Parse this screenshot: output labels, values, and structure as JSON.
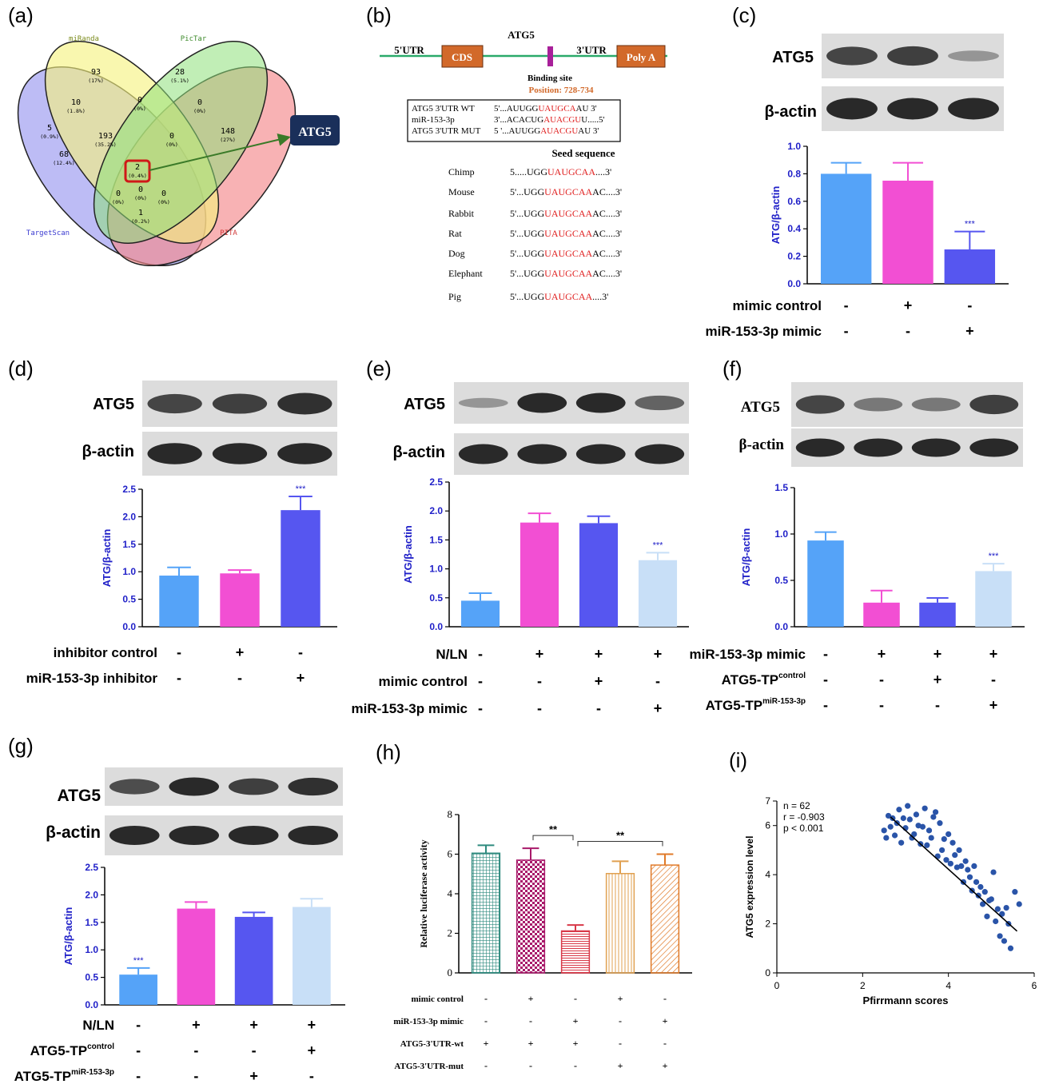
{
  "panel_labels": [
    "(a)",
    "(b)",
    "(c)",
    "(d)",
    "(e)",
    "(f)",
    "(g)",
    "(h)",
    "(i)"
  ],
  "colors": {
    "blue": "#55a3f8",
    "pink": "#f24fd3",
    "indigo": "#5656f0",
    "light_blue": "#c8dff7",
    "axis_blue": "#2020c8",
    "red": "#e02020",
    "orange": "#e07a28",
    "navy": "#1a2f5a"
  },
  "venn": {
    "set_names": [
      "miRanda",
      "PicTar",
      "TargetScan",
      "PITA"
    ],
    "regions": [
      {
        "count": "93",
        "pct": "(17%)"
      },
      {
        "count": "28",
        "pct": "(5.1%)"
      },
      {
        "count": "10",
        "pct": "(1.8%)"
      },
      {
        "count": "0",
        "pct": "(0%)"
      },
      {
        "count": "0",
        "pct": "(0%)"
      },
      {
        "count": "5",
        "pct": "(0.9%)"
      },
      {
        "count": "193",
        "pct": "(35.2%)"
      },
      {
        "count": "0",
        "pct": "(0%)"
      },
      {
        "count": "148",
        "pct": "(27%)"
      },
      {
        "count": "68",
        "pct": "(12.4%)"
      },
      {
        "count": "2",
        "pct": "(0.4%)"
      },
      {
        "count": "0",
        "pct": "(0%)"
      },
      {
        "count": "0",
        "pct": "(0%)"
      },
      {
        "count": "1",
        "pct": "(0.2%)"
      },
      {
        "count": "0",
        "pct": "(0%)"
      }
    ],
    "callout": "ATG5"
  },
  "gene_diagram": {
    "title": "ATG5",
    "utr5": "5'UTR",
    "cds": "CDS",
    "utr3": "3'UTR",
    "polya": "Poly A",
    "binding_site": "Binding site",
    "position": "Position: 728-734",
    "alignment": [
      {
        "name": "ATG5 3'UTR WT",
        "pre": "5'...AUUGG",
        "red": "UAUGCA",
        "post": "AU 3'"
      },
      {
        "name": "miR-153-3p",
        "pre": "3'...ACACUG",
        "red": "AUACGU",
        "post": "U.....5'"
      },
      {
        "name": "ATG5 3'UTR MUT",
        "pre": "5 '...AUUGG",
        "red": "AUACGU",
        "post": "AU 3'"
      }
    ],
    "seed_title": "Seed sequence",
    "species": [
      {
        "name": "Chimp",
        "pre": "5.....UGG",
        "red": "UAUGCAA",
        "post": "....3'"
      },
      {
        "name": "Mouse",
        "pre": "5'...UGG",
        "red": "UAUGCAA",
        "post": "AC....3'"
      },
      {
        "name": "Rabbit",
        "pre": "5'...UGG",
        "red": "UAUGCAA",
        "post": "AC....3'"
      },
      {
        "name": "Rat",
        "pre": "5'...UGG",
        "red": "UAUGCAA",
        "post": "AC....3'"
      },
      {
        "name": "Dog",
        "pre": "5'...UGG",
        "red": "UAUGCAA",
        "post": "AC....3'"
      },
      {
        "name": "Elephant",
        "pre": "5'...UGG",
        "red": "UAUGCAA",
        "post": "AC....3'"
      },
      {
        "name": "Pig",
        "pre": "5'...UGG",
        "red": "UAUGCAA",
        "post": "....3'"
      }
    ]
  },
  "blot_labels": {
    "atg5": "ATG5",
    "actin": "β-actin"
  },
  "chart_data": [
    {
      "panel": "(c)",
      "type": "bar",
      "ylabel": "ATG/β-actin",
      "ylim": [
        0,
        1.0
      ],
      "ticks": [
        "0.0",
        "0.2",
        "0.4",
        "0.6",
        "0.8",
        "1.0"
      ],
      "values": [
        0.8,
        0.75,
        0.25
      ],
      "errors": [
        0.08,
        0.13,
        0.13
      ],
      "colors": [
        "#55a3f8",
        "#f24fd3",
        "#5656f0"
      ],
      "annotations": [
        "",
        "",
        "***"
      ],
      "conditions": [
        {
          "label": "mimic control",
          "signs": [
            "-",
            "+",
            "-"
          ]
        },
        {
          "label": "miR-153-3p mimic",
          "signs": [
            "-",
            "-",
            "+"
          ]
        }
      ]
    },
    {
      "panel": "(d)",
      "type": "bar",
      "ylabel": "ATG/β-actin",
      "ylim": [
        0,
        2.5
      ],
      "ticks": [
        "0.0",
        "0.5",
        "1.0",
        "1.5",
        "2.0",
        "2.5"
      ],
      "values": [
        0.93,
        0.97,
        2.12
      ],
      "errors": [
        0.15,
        0.06,
        0.25
      ],
      "colors": [
        "#55a3f8",
        "#f24fd3",
        "#5656f0"
      ],
      "annotations": [
        "",
        "",
        "***"
      ],
      "conditions": [
        {
          "label": "inhibitor control",
          "signs": [
            "-",
            "+",
            "-"
          ]
        },
        {
          "label": "miR-153-3p inhibitor",
          "signs": [
            "-",
            "-",
            "+"
          ]
        }
      ]
    },
    {
      "panel": "(e)",
      "type": "bar",
      "ylabel": "ATG/β-actin",
      "ylim": [
        0,
        2.5
      ],
      "ticks": [
        "0.0",
        "0.5",
        "1.0",
        "1.5",
        "2.0",
        "2.5"
      ],
      "values": [
        0.45,
        1.8,
        1.79,
        1.15
      ],
      "errors": [
        0.13,
        0.16,
        0.12,
        0.13
      ],
      "colors": [
        "#55a3f8",
        "#f24fd3",
        "#5656f0",
        "#c8dff7"
      ],
      "annotations": [
        "",
        "",
        "",
        "***"
      ],
      "conditions": [
        {
          "label": "N/LN",
          "signs": [
            "-",
            "+",
            "+",
            "+"
          ]
        },
        {
          "label": "mimic control",
          "signs": [
            "-",
            "-",
            "+",
            "-"
          ]
        },
        {
          "label": "miR-153-3p mimic",
          "signs": [
            "-",
            "-",
            "-",
            "+"
          ]
        }
      ]
    },
    {
      "panel": "(f)",
      "type": "bar",
      "ylabel": "ATG/β-actin",
      "ylim": [
        0,
        1.5
      ],
      "ticks": [
        "0.0",
        "0.5",
        "1.0",
        "1.5"
      ],
      "values": [
        0.93,
        0.26,
        0.26,
        0.6
      ],
      "errors": [
        0.09,
        0.13,
        0.05,
        0.08
      ],
      "colors": [
        "#55a3f8",
        "#f24fd3",
        "#5656f0",
        "#c8dff7"
      ],
      "annotations": [
        "",
        "",
        "",
        "***"
      ],
      "conditions": [
        {
          "label": "miR-153-3p mimic",
          "sup": "",
          "signs": [
            "-",
            "+",
            "+",
            "+"
          ]
        },
        {
          "label": "ATG5-TP",
          "sup": "control",
          "signs": [
            "-",
            "-",
            "+",
            "-"
          ]
        },
        {
          "label": "ATG5-TP",
          "sup": "miR-153-3p",
          "signs": [
            "-",
            "-",
            "-",
            "+"
          ]
        }
      ]
    },
    {
      "panel": "(g)",
      "type": "bar",
      "ylabel": "ATG/β-actin",
      "ylim": [
        0,
        2.5
      ],
      "ticks": [
        "0.0",
        "0.5",
        "1.0",
        "1.5",
        "2.0",
        "2.5"
      ],
      "values": [
        0.55,
        1.75,
        1.6,
        1.78
      ],
      "errors": [
        0.12,
        0.12,
        0.08,
        0.15
      ],
      "colors": [
        "#55a3f8",
        "#f24fd3",
        "#5656f0",
        "#c8dff7"
      ],
      "annotations": [
        "***",
        "",
        "",
        ""
      ],
      "conditions": [
        {
          "label": "N/LN",
          "sup": "",
          "signs": [
            "-",
            "+",
            "+",
            "+"
          ]
        },
        {
          "label": "ATG5-TP",
          "sup": "control",
          "signs": [
            "-",
            "-",
            "-",
            "+"
          ]
        },
        {
          "label": "ATG5-TP",
          "sup": "miR-153-3p",
          "signs": [
            "-",
            "-",
            "+",
            "-"
          ]
        }
      ]
    },
    {
      "panel": "(h)",
      "type": "bar",
      "ylabel": "Relative luciferase activity",
      "ylim": [
        0,
        8
      ],
      "ticks": [
        "0",
        "2",
        "4",
        "6",
        "8"
      ],
      "values": [
        6.05,
        5.7,
        2.12,
        5.02,
        5.45
      ],
      "errors": [
        0.4,
        0.6,
        0.3,
        0.62,
        0.55
      ],
      "colors": [
        "#2e8a7e",
        "#a8196a",
        "#d83848",
        "#e0a050",
        "#e07a28"
      ],
      "patterns": [
        "grid",
        "checker",
        "hlines",
        "vlines",
        "diag"
      ],
      "brackets": [
        {
          "from": 1,
          "to": 2,
          "label": "**"
        },
        {
          "from": 2,
          "to": 4,
          "label": "**"
        }
      ],
      "conditions": [
        {
          "label": "mimic control",
          "signs": [
            "-",
            "+",
            "-",
            "+",
            "-"
          ]
        },
        {
          "label": "miR-153-3p mimic",
          "signs": [
            "-",
            "-",
            "+",
            "-",
            "+"
          ]
        },
        {
          "label": "ATG5-3'UTR-wt",
          "signs": [
            "+",
            "+",
            "+",
            "-",
            "-"
          ]
        },
        {
          "label": "ATG5-3'UTR-mut",
          "signs": [
            "-",
            "-",
            "-",
            "+",
            "+"
          ]
        }
      ]
    },
    {
      "panel": "(i)",
      "type": "scatter",
      "xlabel": "Pfirrmann scores",
      "ylabel": "ATG5 expression level",
      "xlim": [
        0,
        6
      ],
      "ylim": [
        0,
        7
      ],
      "xticks": [
        "0",
        "2",
        "4",
        "6"
      ],
      "yticks": [
        "0",
        "2",
        "4",
        "6",
        "7"
      ],
      "stats": [
        "n = 62",
        "r = -0.903",
        "p < 0.001"
      ],
      "fit": {
        "x": [
          2.65,
          5.6
        ],
        "y": [
          6.35,
          1.7
        ]
      },
      "points": [
        [
          2.5,
          5.8
        ],
        [
          2.55,
          5.5
        ],
        [
          2.6,
          6.4
        ],
        [
          2.65,
          5.95
        ],
        [
          2.7,
          6.3
        ],
        [
          2.75,
          5.6
        ],
        [
          2.8,
          6.1
        ],
        [
          2.85,
          6.65
        ],
        [
          2.9,
          5.3
        ],
        [
          2.95,
          6.3
        ],
        [
          3.0,
          5.9
        ],
        [
          3.05,
          6.8
        ],
        [
          3.1,
          6.25
        ],
        [
          3.15,
          5.5
        ],
        [
          3.2,
          5.65
        ],
        [
          3.25,
          6.45
        ],
        [
          3.3,
          6.0
        ],
        [
          3.35,
          5.25
        ],
        [
          3.4,
          5.95
        ],
        [
          3.45,
          6.7
        ],
        [
          3.5,
          5.2
        ],
        [
          3.55,
          5.8
        ],
        [
          3.6,
          5.5
        ],
        [
          3.65,
          6.35
        ],
        [
          3.7,
          6.55
        ],
        [
          3.75,
          4.75
        ],
        [
          3.8,
          6.1
        ],
        [
          3.85,
          5.0
        ],
        [
          3.9,
          5.45
        ],
        [
          3.95,
          4.6
        ],
        [
          4.0,
          5.65
        ],
        [
          4.05,
          4.45
        ],
        [
          4.1,
          5.3
        ],
        [
          4.15,
          4.8
        ],
        [
          4.2,
          4.3
        ],
        [
          4.25,
          5.0
        ],
        [
          4.3,
          4.35
        ],
        [
          4.35,
          3.7
        ],
        [
          4.4,
          4.55
        ],
        [
          4.45,
          4.2
        ],
        [
          4.5,
          3.9
        ],
        [
          4.55,
          3.35
        ],
        [
          4.6,
          4.35
        ],
        [
          4.65,
          3.7
        ],
        [
          4.7,
          3.15
        ],
        [
          4.75,
          3.5
        ],
        [
          4.8,
          2.8
        ],
        [
          4.85,
          3.3
        ],
        [
          4.9,
          2.3
        ],
        [
          4.95,
          2.95
        ],
        [
          5.0,
          3.0
        ],
        [
          5.05,
          4.1
        ],
        [
          5.1,
          2.1
        ],
        [
          5.15,
          2.6
        ],
        [
          5.2,
          1.5
        ],
        [
          5.25,
          2.4
        ],
        [
          5.3,
          1.3
        ],
        [
          5.35,
          2.65
        ],
        [
          5.4,
          2.0
        ],
        [
          5.45,
          1.0
        ],
        [
          5.55,
          3.3
        ],
        [
          5.65,
          2.8
        ]
      ]
    }
  ]
}
